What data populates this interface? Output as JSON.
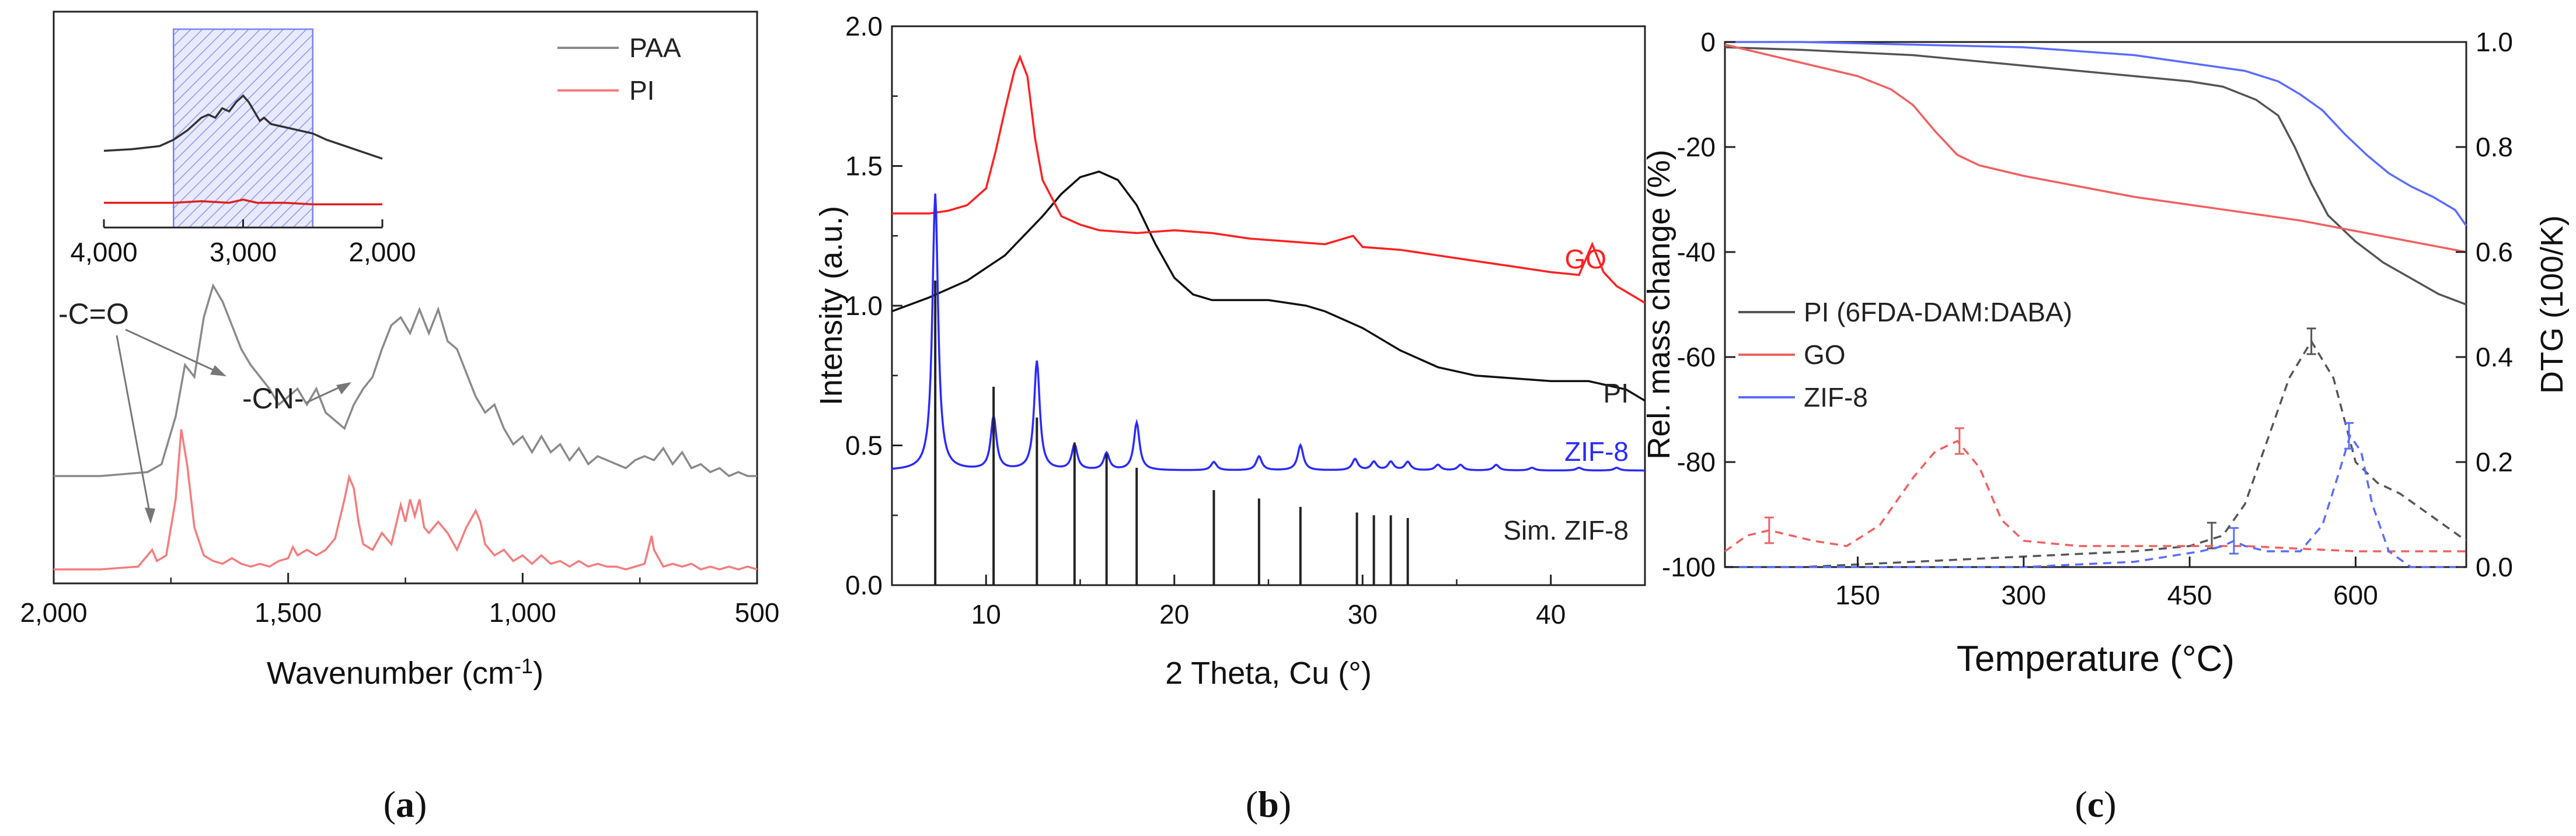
{
  "chart_data": [
    {
      "panel": "a",
      "type": "line",
      "caption": "a",
      "xlabel": "Wavenumber (cm",
      "xlabel_sup": "-1",
      "xlabel_end": ")",
      "xlim": [
        2000,
        500
      ],
      "xticks": [
        "2,000",
        "1,500",
        "1,000",
        "500"
      ],
      "xtick_values": [
        2000,
        1500,
        1000,
        500
      ],
      "ylabel": "",
      "legend": {
        "position": "top-right",
        "entries": [
          "PAA",
          "PI"
        ]
      },
      "colors": {
        "PAA": "#8a8a8a",
        "PI": "#f47d7d"
      },
      "series": [
        {
          "name": "PAA",
          "x": [
            2000,
            1900,
            1800,
            1770,
            1740,
            1720,
            1700,
            1680,
            1660,
            1640,
            1620,
            1600,
            1580,
            1560,
            1540,
            1520,
            1500,
            1480,
            1460,
            1440,
            1420,
            1400,
            1380,
            1360,
            1340,
            1320,
            1300,
            1280,
            1260,
            1240,
            1220,
            1200,
            1180,
            1160,
            1140,
            1120,
            1100,
            1080,
            1060,
            1040,
            1020,
            1000,
            980,
            960,
            940,
            920,
            900,
            880,
            860,
            840,
            820,
            800,
            780,
            760,
            740,
            720,
            700,
            680,
            660,
            640,
            620,
            600,
            580,
            560,
            540,
            520,
            500
          ],
          "y": [
            0.3,
            0.3,
            0.31,
            0.33,
            0.45,
            0.58,
            0.55,
            0.7,
            0.78,
            0.74,
            0.68,
            0.62,
            0.58,
            0.55,
            0.52,
            0.48,
            0.5,
            0.52,
            0.48,
            0.52,
            0.46,
            0.44,
            0.42,
            0.48,
            0.52,
            0.55,
            0.62,
            0.68,
            0.7,
            0.66,
            0.72,
            0.66,
            0.72,
            0.64,
            0.62,
            0.56,
            0.5,
            0.46,
            0.48,
            0.42,
            0.38,
            0.4,
            0.36,
            0.4,
            0.36,
            0.38,
            0.34,
            0.37,
            0.33,
            0.35,
            0.34,
            0.33,
            0.32,
            0.34,
            0.35,
            0.34,
            0.37,
            0.33,
            0.36,
            0.32,
            0.33,
            0.31,
            0.32,
            0.3,
            0.31,
            0.3,
            0.3
          ]
        },
        {
          "name": "PI",
          "x": [
            2000,
            1900,
            1820,
            1790,
            1780,
            1760,
            1740,
            1728,
            1715,
            1700,
            1680,
            1660,
            1640,
            1620,
            1600,
            1580,
            1560,
            1540,
            1520,
            1500,
            1490,
            1480,
            1460,
            1440,
            1420,
            1400,
            1380,
            1370,
            1360,
            1350,
            1340,
            1320,
            1300,
            1280,
            1260,
            1250,
            1240,
            1230,
            1220,
            1210,
            1200,
            1180,
            1160,
            1140,
            1120,
            1100,
            1090,
            1080,
            1060,
            1040,
            1020,
            1000,
            980,
            960,
            940,
            920,
            900,
            880,
            860,
            840,
            820,
            800,
            780,
            760,
            740,
            725,
            720,
            700,
            680,
            660,
            640,
            620,
            600,
            580,
            560,
            540,
            520,
            500
          ],
          "y": [
            0.05,
            0.05,
            0.06,
            0.12,
            0.08,
            0.1,
            0.3,
            0.55,
            0.42,
            0.2,
            0.1,
            0.08,
            0.07,
            0.09,
            0.07,
            0.06,
            0.07,
            0.06,
            0.08,
            0.09,
            0.13,
            0.1,
            0.12,
            0.1,
            0.12,
            0.16,
            0.3,
            0.38,
            0.34,
            0.22,
            0.14,
            0.12,
            0.18,
            0.14,
            0.28,
            0.22,
            0.3,
            0.24,
            0.3,
            0.2,
            0.18,
            0.22,
            0.18,
            0.12,
            0.2,
            0.26,
            0.22,
            0.14,
            0.1,
            0.12,
            0.08,
            0.1,
            0.07,
            0.1,
            0.07,
            0.08,
            0.06,
            0.08,
            0.06,
            0.07,
            0.06,
            0.06,
            0.05,
            0.06,
            0.07,
            0.17,
            0.12,
            0.06,
            0.07,
            0.06,
            0.07,
            0.05,
            0.06,
            0.05,
            0.06,
            0.05,
            0.06,
            0.05
          ]
        }
      ],
      "annotations": [
        "-C=O",
        "-CN-"
      ],
      "inset": {
        "xticks": [
          "4,000",
          "3,000",
          "2,000"
        ],
        "xtick_values": [
          4000,
          3000,
          2000
        ],
        "xlim": [
          4000,
          2000
        ],
        "highlight_range": [
          3500,
          2500
        ],
        "series": [
          {
            "name": "PAA",
            "x": [
              4000,
              3800,
              3600,
              3500,
              3400,
              3300,
              3250,
              3200,
              3150,
              3100,
              3050,
              3000,
              2960,
              2920,
              2880,
              2850,
              2800,
              2700,
              2600,
              2500,
              2400,
              2300,
              2200,
              2100,
              2000
            ],
            "y": [
              0.45,
              0.46,
              0.48,
              0.52,
              0.58,
              0.66,
              0.68,
              0.66,
              0.72,
              0.7,
              0.76,
              0.8,
              0.76,
              0.7,
              0.64,
              0.66,
              0.62,
              0.6,
              0.58,
              0.56,
              0.52,
              0.49,
              0.46,
              0.43,
              0.4
            ]
          },
          {
            "name": "PI",
            "x": [
              4000,
              3500,
              3300,
              3100,
              3000,
              2900,
              2700,
              2500,
              2000
            ],
            "y": [
              0.12,
              0.12,
              0.13,
              0.12,
              0.14,
              0.12,
              0.12,
              0.11,
              0.11
            ]
          }
        ]
      }
    },
    {
      "panel": "b",
      "type": "line",
      "caption": "b",
      "xlabel": "2 Theta, Cu (°)",
      "ylabel": "Intensity (a.u.)",
      "xlim": [
        5,
        45
      ],
      "ylim": [
        0,
        2.0
      ],
      "xticks": [
        "10",
        "20",
        "30",
        "40"
      ],
      "xtick_values": [
        10,
        20,
        30,
        40
      ],
      "yticks": [
        "0.0",
        "0.5",
        "1.0",
        "1.5",
        "2.0"
      ],
      "ytick_values": [
        0,
        0.5,
        1.0,
        1.5,
        2.0
      ],
      "colors": {
        "GO": "#ff2020",
        "PI": "#111111",
        "ZIF-8": "#2a2aff",
        "Sim. ZIF-8": "#222222"
      },
      "series_labels": [
        "GO",
        "PI",
        "ZIF-8",
        "Sim. ZIF-8"
      ],
      "series": [
        {
          "name": "GO",
          "x": [
            5,
            6,
            7,
            8,
            9,
            10,
            10.5,
            11,
            11.5,
            11.8,
            12.2,
            12.6,
            13,
            14,
            15,
            16,
            18,
            20,
            22,
            24,
            26,
            28,
            29.5,
            30,
            32,
            34,
            36,
            38,
            40,
            41.5,
            42.2,
            42.8,
            43.5,
            45
          ],
          "y": [
            1.33,
            1.33,
            1.33,
            1.34,
            1.36,
            1.42,
            1.55,
            1.7,
            1.84,
            1.89,
            1.82,
            1.6,
            1.45,
            1.32,
            1.29,
            1.27,
            1.26,
            1.27,
            1.26,
            1.24,
            1.23,
            1.22,
            1.25,
            1.21,
            1.2,
            1.18,
            1.16,
            1.14,
            1.12,
            1.11,
            1.22,
            1.12,
            1.07,
            1.01
          ]
        },
        {
          "name": "PI",
          "x": [
            5,
            7,
            9,
            11,
            13,
            14,
            15,
            16,
            17,
            18,
            19,
            20,
            21,
            22,
            23,
            25,
            27,
            28,
            30,
            32,
            34,
            36,
            38,
            40,
            42,
            44,
            45
          ],
          "y": [
            0.98,
            1.03,
            1.09,
            1.18,
            1.32,
            1.4,
            1.46,
            1.48,
            1.45,
            1.36,
            1.22,
            1.1,
            1.04,
            1.02,
            1.02,
            1.02,
            1.0,
            0.98,
            0.92,
            0.84,
            0.78,
            0.75,
            0.74,
            0.73,
            0.73,
            0.7,
            0.66
          ]
        },
        {
          "name": "ZIF-8",
          "baseline": 0.41,
          "peaks": [
            [
              7.3,
              1.4
            ],
            [
              10.4,
              0.6
            ],
            [
              12.7,
              0.8
            ],
            [
              14.7,
              0.5
            ],
            [
              16.4,
              0.47
            ],
            [
              18.0,
              0.58
            ],
            [
              22.1,
              0.44
            ],
            [
              24.5,
              0.46
            ],
            [
              26.7,
              0.5
            ],
            [
              29.6,
              0.45
            ],
            [
              30.6,
              0.44
            ],
            [
              31.5,
              0.44
            ],
            [
              32.4,
              0.44
            ],
            [
              34.0,
              0.43
            ],
            [
              35.2,
              0.43
            ],
            [
              37.1,
              0.43
            ],
            [
              39.0,
              0.42
            ],
            [
              41.5,
              0.42
            ],
            [
              43.5,
              0.42
            ]
          ]
        },
        {
          "name": "Sim. ZIF-8",
          "sticks": [
            [
              7.3,
              1.09
            ],
            [
              10.4,
              0.71
            ],
            [
              12.7,
              0.6
            ],
            [
              14.7,
              0.51
            ],
            [
              16.4,
              0.47
            ],
            [
              18.0,
              0.42
            ],
            [
              22.1,
              0.34
            ],
            [
              24.5,
              0.31
            ],
            [
              26.7,
              0.28
            ],
            [
              29.7,
              0.26
            ],
            [
              30.6,
              0.25
            ],
            [
              31.5,
              0.25
            ],
            [
              32.4,
              0.24
            ]
          ]
        }
      ]
    },
    {
      "panel": "c",
      "type": "line",
      "caption": "c",
      "xlabel": "Temperature (°C)",
      "ylabel": "Rel. mass change (%)",
      "ylabel_right": "DTG (100/K)",
      "xlim": [
        30,
        700
      ],
      "ylim": [
        -100,
        0
      ],
      "ylim_right": [
        0,
        1.0
      ],
      "xticks": [
        "150",
        "300",
        "450",
        "600"
      ],
      "xtick_values": [
        150,
        300,
        450,
        600
      ],
      "yticks": [
        "0",
        "-20",
        "-40",
        "-60",
        "-80",
        "-100"
      ],
      "ytick_values": [
        0,
        -20,
        -40,
        -60,
        -80,
        -100
      ],
      "yticks_right": [
        "0.0",
        "0.2",
        "0.4",
        "0.6",
        "0.8",
        "1.0"
      ],
      "ytick_values_right": [
        0,
        0.2,
        0.4,
        0.6,
        0.8,
        1.0
      ],
      "legend": {
        "position": "center-left",
        "entries": [
          "PI (6FDA-DAM:DABA)",
          "GO",
          "ZIF-8"
        ]
      },
      "colors": {
        "PI (6FDA-DAM:DABA)": "#555555",
        "GO": "#f06060",
        "ZIF-8": "#5a6cff"
      },
      "series": [
        {
          "name": "PI (6FDA-DAM:DABA)",
          "axis": "left",
          "x": [
            30,
            100,
            200,
            300,
            350,
            400,
            450,
            480,
            510,
            530,
            545,
            560,
            575,
            600,
            625,
            650,
            675,
            700
          ],
          "y": [
            -1,
            -1.5,
            -2.5,
            -4.5,
            -5.5,
            -6.5,
            -7.5,
            -8.5,
            -11,
            -14,
            -20,
            -27,
            -33,
            -38,
            -42,
            -45,
            -48,
            -50
          ]
        },
        {
          "name": "GO",
          "axis": "left",
          "x": [
            30,
            60,
            90,
            120,
            150,
            180,
            200,
            220,
            240,
            260,
            280,
            300,
            350,
            400,
            450,
            500,
            550,
            600,
            650,
            700
          ],
          "y": [
            -0.5,
            -2,
            -3.5,
            -5,
            -6.5,
            -9,
            -12,
            -17,
            -21.5,
            -23.5,
            -24.5,
            -25.5,
            -27.5,
            -29.5,
            -31,
            -32.5,
            -34,
            -36,
            -38,
            -40
          ]
        },
        {
          "name": "ZIF-8",
          "axis": "left",
          "x": [
            30,
            100,
            200,
            300,
            400,
            450,
            500,
            530,
            550,
            570,
            590,
            610,
            630,
            650,
            670,
            690,
            700
          ],
          "y": [
            0,
            0,
            -0.5,
            -1,
            -2.5,
            -4,
            -5.5,
            -7.5,
            -10,
            -13,
            -17.5,
            -21.5,
            -25,
            -27.5,
            -29.5,
            -32,
            -35
          ]
        },
        {
          "name": "PI DTG",
          "axis": "right",
          "style": "dashed",
          "x": [
            30,
            100,
            200,
            300,
            400,
            450,
            480,
            500,
            520,
            540,
            560,
            580,
            600,
            620,
            640,
            660,
            680,
            700
          ],
          "y": [
            0.0,
            0.0,
            0.01,
            0.02,
            0.03,
            0.04,
            0.06,
            0.12,
            0.24,
            0.36,
            0.43,
            0.36,
            0.2,
            0.16,
            0.14,
            0.11,
            0.08,
            0.05
          ],
          "error_x": [
            470,
            560
          ],
          "error_y": [
            0.06,
            0.43
          ]
        },
        {
          "name": "GO DTG",
          "axis": "right",
          "style": "dashed",
          "x": [
            30,
            50,
            70,
            90,
            110,
            140,
            170,
            200,
            220,
            240,
            260,
            280,
            300,
            350,
            400,
            500,
            600,
            700
          ],
          "y": [
            0.03,
            0.06,
            0.07,
            0.06,
            0.05,
            0.04,
            0.08,
            0.17,
            0.22,
            0.24,
            0.19,
            0.09,
            0.05,
            0.04,
            0.04,
            0.04,
            0.03,
            0.03
          ],
          "error_x": [
            70,
            242
          ],
          "error_y": [
            0.07,
            0.24
          ]
        },
        {
          "name": "ZIF-8 DTG",
          "axis": "right",
          "style": "dashed",
          "x": [
            30,
            200,
            300,
            400,
            460,
            480,
            490,
            500,
            520,
            550,
            570,
            585,
            595,
            605,
            615,
            630,
            650,
            680,
            700
          ],
          "y": [
            0.0,
            0.0,
            0.0,
            0.01,
            0.03,
            0.04,
            0.05,
            0.04,
            0.03,
            0.03,
            0.08,
            0.18,
            0.25,
            0.22,
            0.12,
            0.03,
            0.0,
            0.0,
            0.0
          ],
          "error_x": [
            490,
            594
          ],
          "error_y": [
            0.05,
            0.25
          ]
        }
      ]
    }
  ]
}
